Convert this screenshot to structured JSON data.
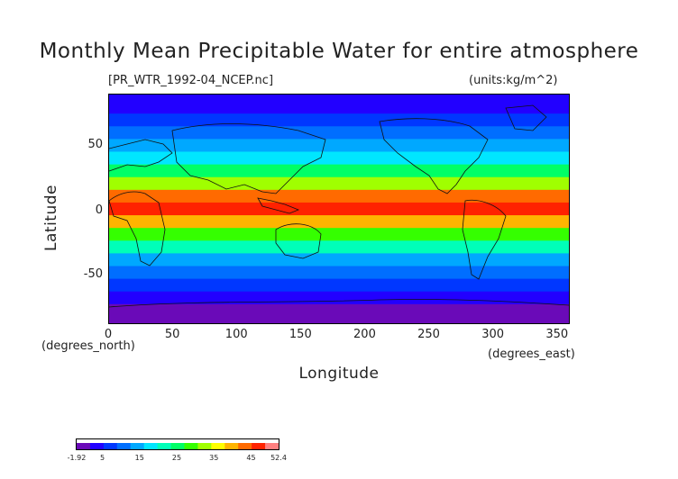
{
  "title": "Monthly Mean Precipitable Water for entire atmosphere",
  "file_label": "[PR_WTR_1992-04_NCEP.nc]",
  "units_label": "(units:kg/m^2)",
  "colors": {
    "bands": [
      "#6a0ab8",
      "#2200ff",
      "#0037ff",
      "#006eff",
      "#00a8ff",
      "#00e6ff",
      "#00ffb8",
      "#00ff66",
      "#35ff00",
      "#a0ff00",
      "#ffff00",
      "#ffb400",
      "#ff6a00",
      "#ff2200",
      "#ff8080"
    ]
  },
  "chart_data": {
    "type": "heatmap",
    "title": "Monthly Mean Precipitable Water for entire atmosphere",
    "xlabel": "Longitude",
    "ylabel": "Latitude",
    "x_unit": "(degrees_east)",
    "y_unit": "(degrees_north)",
    "xlim": [
      0,
      360
    ],
    "ylim": [
      -90,
      90
    ],
    "x_ticks": [
      0,
      50,
      100,
      150,
      200,
      250,
      300,
      350
    ],
    "y_ticks": [
      50,
      0,
      -50
    ],
    "colorbar": {
      "min": -1.92,
      "max": 52.4,
      "tick_labels": [
        "-1.92",
        "5",
        "15",
        "25",
        "35",
        "45",
        "52.4"
      ],
      "tick_values": [
        -1.92,
        5,
        15,
        25,
        35,
        45,
        52.4
      ]
    },
    "zonal_profile": [
      {
        "lat": 88,
        "value": 3
      },
      {
        "lat": 80,
        "value": 4
      },
      {
        "lat": 70,
        "value": 6
      },
      {
        "lat": 60,
        "value": 9
      },
      {
        "lat": 50,
        "value": 13
      },
      {
        "lat": 40,
        "value": 18
      },
      {
        "lat": 30,
        "value": 24
      },
      {
        "lat": 20,
        "value": 33
      },
      {
        "lat": 10,
        "value": 42
      },
      {
        "lat": 0,
        "value": 46
      },
      {
        "lat": -10,
        "value": 40
      },
      {
        "lat": -20,
        "value": 30
      },
      {
        "lat": -30,
        "value": 22
      },
      {
        "lat": -40,
        "value": 16
      },
      {
        "lat": -50,
        "value": 11
      },
      {
        "lat": -60,
        "value": 8
      },
      {
        "lat": -70,
        "value": 4
      },
      {
        "lat": -80,
        "value": 1
      },
      {
        "lat": -88,
        "value": 0
      }
    ]
  }
}
